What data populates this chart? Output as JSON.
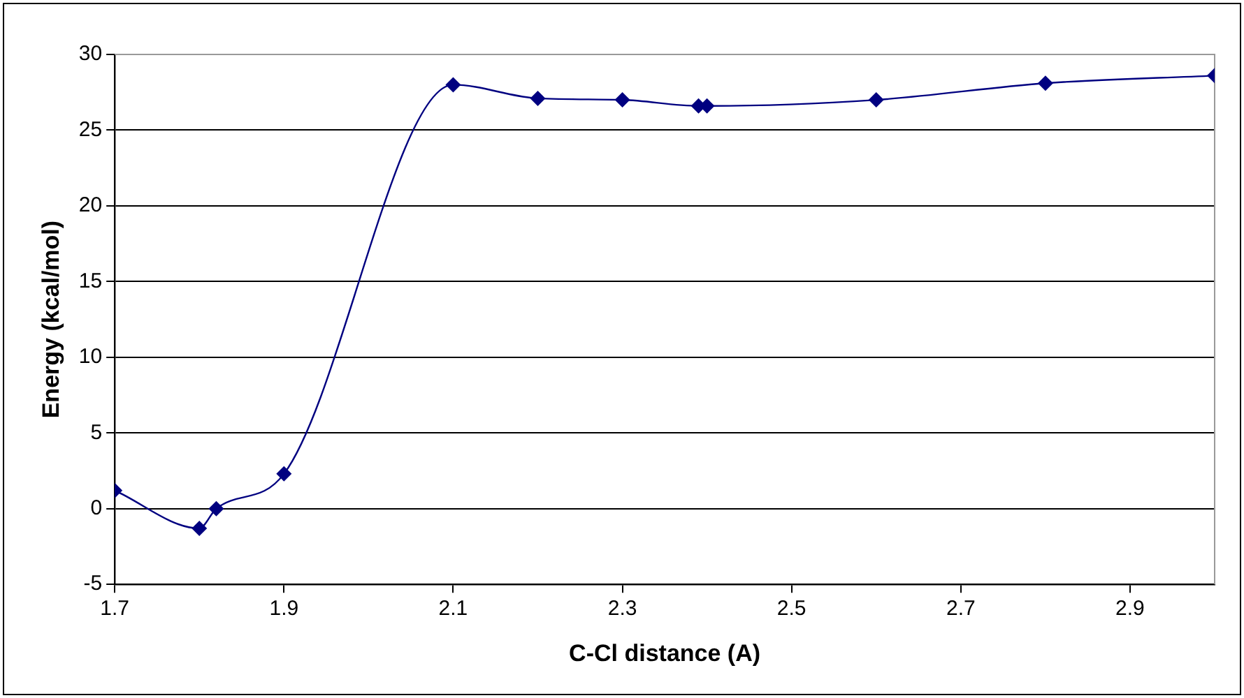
{
  "chart_data": {
    "type": "line",
    "xlabel": "C-Cl distance (A)",
    "ylabel": "Energy (kcal/mol)",
    "x": [
      1.7,
      1.8,
      1.82,
      1.9,
      2.1,
      2.2,
      2.3,
      2.39,
      2.4,
      2.6,
      2.8,
      3.0
    ],
    "series": [
      {
        "color": "#000080",
        "values": [
          1.2,
          -1.3,
          0,
          2.3,
          28,
          27.1,
          27,
          26.6,
          26.6,
          27,
          28.1,
          28.6
        ]
      }
    ],
    "xlim": [
      1.7,
      3.0
    ],
    "xticks": [
      1.7,
      1.9,
      2.1,
      2.3,
      2.5,
      2.7,
      2.9
    ],
    "ylim": [
      -5,
      30
    ],
    "yticks": [
      -5,
      0,
      5,
      10,
      15,
      20,
      25,
      30
    ],
    "grid": "y",
    "legend": false,
    "marker": "diamond",
    "line_style": "solid"
  }
}
